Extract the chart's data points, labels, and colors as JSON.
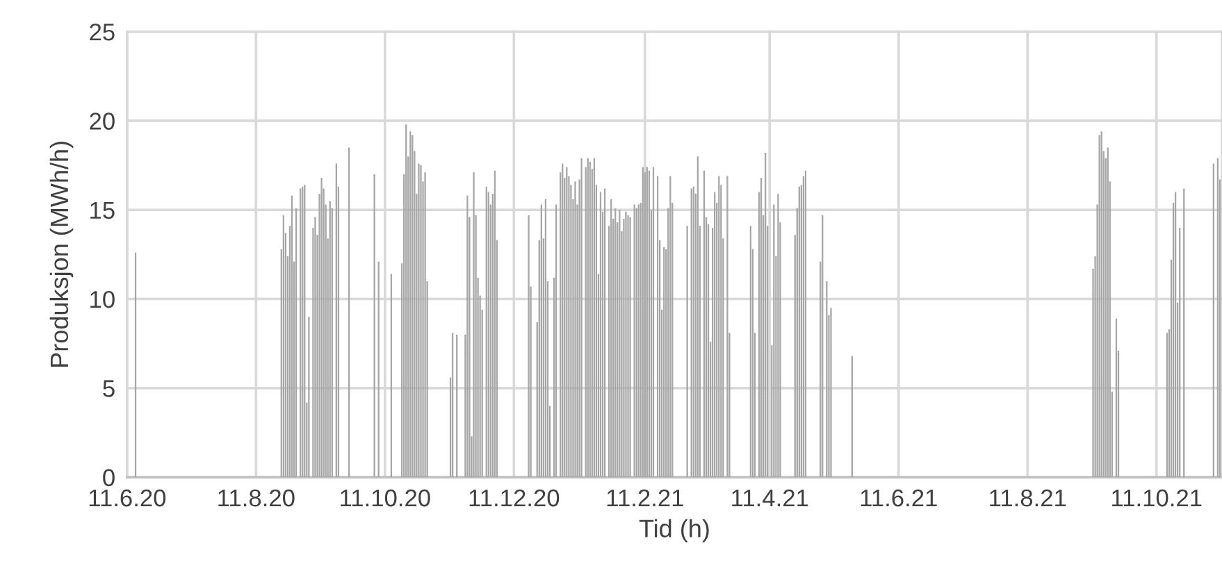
{
  "chart_data": {
    "type": "bar",
    "xlabel": "Tid (h)",
    "ylabel": "Produksjon (MWh/h)",
    "color": "#a6a6a6",
    "grid": true,
    "ylim": [
      0,
      25
    ],
    "yticks": [
      0,
      5,
      10,
      15,
      20,
      25
    ],
    "xlim": [
      "2020-06-11",
      "2021-11-11"
    ],
    "xticks": [
      {
        "value": "2020-06-11",
        "label": "11.6.20"
      },
      {
        "value": "2020-08-11",
        "label": "11.8.20"
      },
      {
        "value": "2020-10-11",
        "label": "11.10.20"
      },
      {
        "value": "2020-12-11",
        "label": "11.12.20"
      },
      {
        "value": "2021-02-11",
        "label": "11.2.21"
      },
      {
        "value": "2021-04-11",
        "label": "11.4.21"
      },
      {
        "value": "2021-06-11",
        "label": "11.6.21"
      },
      {
        "value": "2021-08-11",
        "label": "11.8.21"
      },
      {
        "value": "2021-10-11",
        "label": "11.10.21"
      }
    ],
    "x": [
      "2020-06-15",
      "2020-08-23",
      "2020-08-24",
      "2020-08-25",
      "2020-08-26",
      "2020-08-27",
      "2020-08-28",
      "2020-08-29",
      "2020-08-30",
      "2020-09-01",
      "2020-09-02",
      "2020-09-03",
      "2020-09-04",
      "2020-09-05",
      "2020-09-07",
      "2020-09-08",
      "2020-09-09",
      "2020-09-10",
      "2020-09-11",
      "2020-09-12",
      "2020-09-13",
      "2020-09-14",
      "2020-09-15",
      "2020-09-16",
      "2020-09-18",
      "2020-09-19",
      "2020-09-24",
      "2020-10-06",
      "2020-10-08",
      "2020-10-14",
      "2020-10-19",
      "2020-10-20",
      "2020-10-21",
      "2020-10-22",
      "2020-10-23",
      "2020-10-24",
      "2020-10-25",
      "2020-10-26",
      "2020-10-27",
      "2020-10-28",
      "2020-10-29",
      "2020-10-30",
      "2020-10-31",
      "2020-11-11",
      "2020-11-12",
      "2020-11-14",
      "2020-11-18",
      "2020-11-19",
      "2020-11-20",
      "2020-11-21",
      "2020-11-22",
      "2020-11-23",
      "2020-11-24",
      "2020-11-25",
      "2020-11-26",
      "2020-11-28",
      "2020-11-29",
      "2020-11-30",
      "2020-12-01",
      "2020-12-02",
      "2020-12-03",
      "2020-12-18",
      "2020-12-19",
      "2020-12-22",
      "2020-12-23",
      "2020-12-24",
      "2020-12-25",
      "2020-12-26",
      "2020-12-27",
      "2020-12-28",
      "2020-12-30",
      "2020-12-31",
      "2021-01-02",
      "2021-01-03",
      "2021-01-04",
      "2021-01-05",
      "2021-01-06",
      "2021-01-07",
      "2021-01-08",
      "2021-01-09",
      "2021-01-10",
      "2021-01-11",
      "2021-01-12",
      "2021-01-14",
      "2021-01-15",
      "2021-01-16",
      "2021-01-17",
      "2021-01-18",
      "2021-01-19",
      "2021-01-20",
      "2021-01-21",
      "2021-01-22",
      "2021-01-23",
      "2021-01-25",
      "2021-01-26",
      "2021-01-27",
      "2021-01-28",
      "2021-01-29",
      "2021-01-30",
      "2021-01-31",
      "2021-02-01",
      "2021-02-02",
      "2021-02-03",
      "2021-02-04",
      "2021-02-06",
      "2021-02-07",
      "2021-02-08",
      "2021-02-09",
      "2021-02-10",
      "2021-02-11",
      "2021-02-12",
      "2021-02-13",
      "2021-02-14",
      "2021-02-15",
      "2021-02-17",
      "2021-02-18",
      "2021-02-19",
      "2021-02-20",
      "2021-02-21",
      "2021-02-22",
      "2021-02-23",
      "2021-02-24",
      "2021-03-03",
      "2021-03-05",
      "2021-03-06",
      "2021-03-07",
      "2021-03-08",
      "2021-03-09",
      "2021-03-11",
      "2021-03-12",
      "2021-03-13",
      "2021-03-14",
      "2021-03-15",
      "2021-03-16",
      "2021-03-17",
      "2021-03-18",
      "2021-03-19",
      "2021-03-20",
      "2021-03-22",
      "2021-03-23",
      "2021-04-02",
      "2021-04-03",
      "2021-04-04",
      "2021-04-06",
      "2021-04-07",
      "2021-04-08",
      "2021-04-09",
      "2021-04-10",
      "2021-04-12",
      "2021-04-13",
      "2021-04-14",
      "2021-04-15",
      "2021-04-16",
      "2021-04-23",
      "2021-04-24",
      "2021-04-25",
      "2021-04-26",
      "2021-04-27",
      "2021-04-28",
      "2021-05-05",
      "2021-05-06",
      "2021-05-08",
      "2021-05-09",
      "2021-05-10",
      "2021-05-20",
      "2021-09-11",
      "2021-09-12",
      "2021-09-13",
      "2021-09-14",
      "2021-09-15",
      "2021-09-16",
      "2021-09-17",
      "2021-09-18",
      "2021-09-19",
      "2021-09-20",
      "2021-09-22",
      "2021-09-23",
      "2021-10-16",
      "2021-10-17",
      "2021-10-18",
      "2021-10-19",
      "2021-10-20",
      "2021-10-21",
      "2021-10-22",
      "2021-10-24",
      "2021-11-07",
      "2021-11-09",
      "2021-11-10"
    ],
    "values": [
      12.6,
      12.8,
      14.7,
      13.7,
      12.4,
      14.1,
      15.8,
      12.1,
      15.1,
      16.2,
      16.3,
      16.4,
      4.2,
      9.0,
      14.0,
      14.6,
      13.6,
      15.9,
      16.8,
      16.2,
      15.3,
      13.4,
      15.5,
      15.1,
      17.6,
      16.3,
      18.5,
      17.0,
      12.1,
      11.4,
      12.0,
      17.0,
      19.8,
      18.0,
      19.4,
      19.2,
      18.3,
      15.9,
      17.6,
      17.5,
      16.6,
      17.1,
      11.0,
      5.6,
      8.1,
      8.0,
      8.0,
      15.8,
      14.6,
      2.3,
      17.1,
      14.7,
      11.2,
      10.2,
      9.4,
      16.3,
      16.0,
      15.3,
      15.9,
      17.2,
      13.3,
      14.7,
      10.7,
      8.7,
      13.3,
      15.3,
      13.4,
      15.6,
      11.0,
      4.0,
      11.2,
      15.3,
      17.1,
      17.6,
      16.8,
      17.4,
      16.9,
      16.4,
      15.6,
      16.6,
      15.3,
      16.7,
      17.9,
      17.4,
      17.9,
      17.7,
      17.3,
      17.9,
      16.4,
      11.4,
      16.0,
      14.9,
      16.2,
      14.1,
      15.6,
      14.5,
      15.1,
      14.3,
      15.0,
      13.8,
      14.5,
      14.9,
      14.7,
      14.6,
      15.3,
      15.1,
      15.3,
      15.4,
      17.4,
      17.1,
      17.4,
      17.2,
      15.0,
      17.4,
      16.9,
      13.3,
      9.4,
      12.9,
      12.8,
      15.1,
      16.9,
      15.4,
      14.1,
      16.2,
      16.3,
      15.9,
      18.0,
      14.1,
      17.2,
      14.6,
      14.2,
      7.6,
      14.0,
      16.0,
      15.4,
      16.9,
      16.4,
      13.4,
      16.9,
      8.1,
      14.1,
      12.8,
      8.1,
      16.0,
      16.8,
      14.7,
      18.2,
      14.1,
      7.4,
      15.3,
      12.4,
      15.9,
      14.3,
      13.6,
      15.1,
      16.3,
      16.4,
      16.9,
      17.2,
      12.1,
      14.7,
      11.0,
      9.1,
      9.5,
      6.8,
      11.7,
      12.4,
      15.3,
      19.2,
      19.4,
      18.3,
      17.9,
      18.5,
      16.6,
      4.8,
      8.9,
      7.1,
      8.1,
      8.3,
      12.2,
      15.4,
      16.0,
      9.8,
      14.0,
      16.2,
      17.6,
      17.9,
      16.7
    ]
  }
}
